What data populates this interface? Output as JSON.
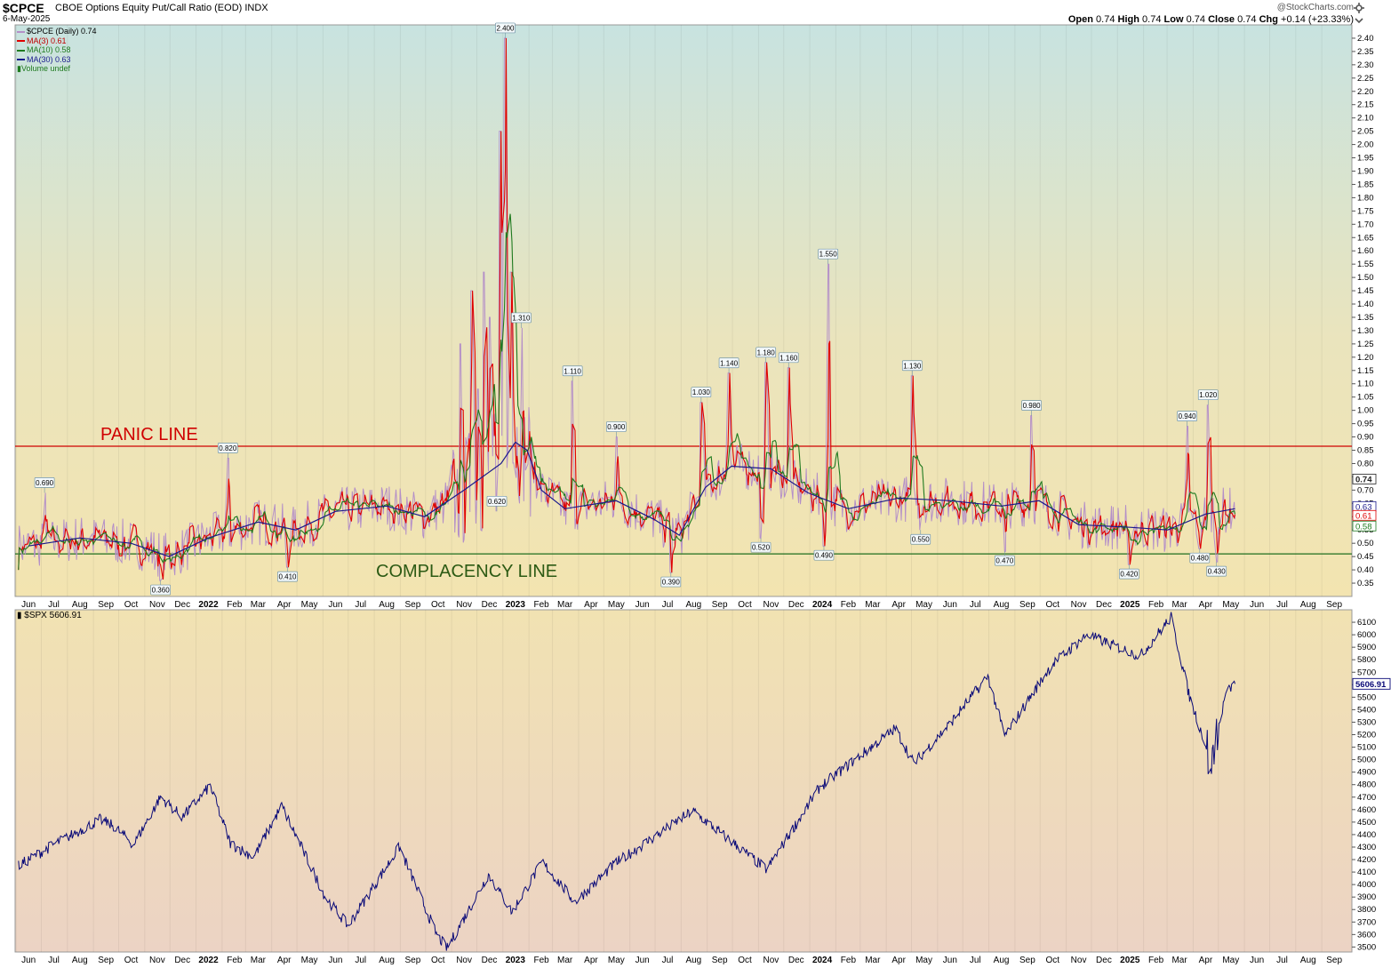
{
  "header": {
    "symbol": "$CPCE",
    "description": "CBOE Options Equity Put/Call Ratio (EOD)  INDX",
    "date": "6-May-2025",
    "brand": "@StockCharts.com",
    "ohlc": {
      "open_label": "Open",
      "open": "0.74",
      "high_label": "High",
      "high": "0.74",
      "low_label": "Low",
      "low": "0.74",
      "close_label": "Close",
      "close": "0.74",
      "chg_label": "Chg",
      "chg": "+0.14 (+23.33%)"
    }
  },
  "legend": {
    "cpce": "$CPCE (Daily) 0.74",
    "ma3": "MA(3) 0.61",
    "ma10": "MA(10) 0.58",
    "ma30": "MA(30) 0.63",
    "volume": "Volume undef",
    "spx": "$SPX 5606.91"
  },
  "colors": {
    "cpce": "#b48fc8",
    "ma3": "#e00000",
    "ma10": "#1f7a1f",
    "ma30": "#1a1a8c",
    "spx": "#0a0a78",
    "panic": "#d00000",
    "complacency": "#1e6e1e"
  },
  "x_axis_labels": [
    "Jun",
    "Jul",
    "Aug",
    "Sep",
    "Oct",
    "Nov",
    "Dec",
    "2022",
    "Feb",
    "Mar",
    "Apr",
    "May",
    "Jun",
    "Jul",
    "Aug",
    "Sep",
    "Oct",
    "Nov",
    "Dec",
    "2023",
    "Feb",
    "Mar",
    "Apr",
    "May",
    "Jun",
    "Jul",
    "Aug",
    "Sep",
    "Oct",
    "Nov",
    "Dec",
    "2024",
    "Feb",
    "Mar",
    "Apr",
    "May",
    "Jun",
    "Jul",
    "Aug",
    "Sep",
    "Oct",
    "Nov",
    "Dec",
    "2025",
    "Feb",
    "Mar",
    "Apr",
    "May",
    "Jun",
    "Jul",
    "Aug",
    "Sep"
  ],
  "chart_data": [
    {
      "type": "line",
      "title": "$CPCE CBOE Options Equity Put/Call Ratio (EOD)",
      "x_range": [
        "2021-05",
        "2025-09"
      ],
      "ylim": [
        0.3,
        2.45
      ],
      "y_ticks": [
        "2.40",
        "2.35",
        "2.30",
        "2.25",
        "2.20",
        "2.15",
        "2.10",
        "2.05",
        "2.00",
        "1.95",
        "1.90",
        "1.85",
        "1.80",
        "1.75",
        "1.70",
        "1.65",
        "1.60",
        "1.55",
        "1.50",
        "1.45",
        "1.40",
        "1.35",
        "1.30",
        "1.25",
        "1.20",
        "1.15",
        "1.10",
        "1.05",
        "1.00",
        "0.95",
        "0.90",
        "0.85",
        "0.80",
        "0.75",
        "0.70",
        "0.65",
        "0.60",
        "0.55",
        "0.50",
        "0.45",
        "0.40",
        "0.35"
      ],
      "last_value_labels": {
        "close": "0.74",
        "ma30": "0.63",
        "ma3": "0.61",
        "ma10": "0.58"
      },
      "reference_lines": [
        {
          "name": "PANIC LINE",
          "value": 0.865
        },
        {
          "name": "COMPLACENCY LINE",
          "value": 0.46
        }
      ],
      "annotations": [
        {
          "date": "2021-06-20",
          "value": 0.69,
          "label": "0.690"
        },
        {
          "date": "2021-11-05",
          "value": 0.36,
          "label": "0.360"
        },
        {
          "date": "2022-01-24",
          "value": 0.82,
          "label": "0.820"
        },
        {
          "date": "2022-04-05",
          "value": 0.41,
          "label": "0.410"
        },
        {
          "date": "2022-12-20",
          "value": 2.4,
          "label": "2.400"
        },
        {
          "date": "2022-12-10",
          "value": 0.62,
          "label": "0.620"
        },
        {
          "date": "2023-01-08",
          "value": 1.31,
          "label": "1.310"
        },
        {
          "date": "2023-03-10",
          "value": 1.11,
          "label": "1.110"
        },
        {
          "date": "2023-05-01",
          "value": 0.9,
          "label": "0.900"
        },
        {
          "date": "2023-07-05",
          "value": 0.39,
          "label": "0.390"
        },
        {
          "date": "2023-08-10",
          "value": 1.03,
          "label": "1.030"
        },
        {
          "date": "2023-09-12",
          "value": 1.14,
          "label": "1.140"
        },
        {
          "date": "2023-10-20",
          "value": 0.52,
          "label": "0.520"
        },
        {
          "date": "2023-10-26",
          "value": 1.18,
          "label": "1.180"
        },
        {
          "date": "2023-11-22",
          "value": 1.16,
          "label": "1.160"
        },
        {
          "date": "2024-01-03",
          "value": 0.49,
          "label": "0.490"
        },
        {
          "date": "2024-01-08",
          "value": 1.55,
          "label": "1.550"
        },
        {
          "date": "2024-04-17",
          "value": 1.13,
          "label": "1.130"
        },
        {
          "date": "2024-04-27",
          "value": 0.55,
          "label": "0.550"
        },
        {
          "date": "2024-08-05",
          "value": 0.47,
          "label": "0.470"
        },
        {
          "date": "2024-09-06",
          "value": 0.98,
          "label": "0.980"
        },
        {
          "date": "2024-12-31",
          "value": 0.42,
          "label": "0.420"
        },
        {
          "date": "2025-03-10",
          "value": 0.94,
          "label": "0.940"
        },
        {
          "date": "2025-03-25",
          "value": 0.48,
          "label": "0.480"
        },
        {
          "date": "2025-04-04",
          "value": 1.02,
          "label": "1.020"
        },
        {
          "date": "2025-04-14",
          "value": 0.43,
          "label": "0.430"
        }
      ],
      "series": [
        {
          "name": "$CPCE (Daily)",
          "last": 0.74
        },
        {
          "name": "MA(3)",
          "last": 0.61
        },
        {
          "name": "MA(10)",
          "last": 0.58
        },
        {
          "name": "MA(30)",
          "last": 0.63
        }
      ],
      "ma30_approx": {
        "dates": [
          "2021-06-01",
          "2021-08-01",
          "2021-10-01",
          "2021-11-15",
          "2022-01-01",
          "2022-03-01",
          "2022-04-15",
          "2022-06-01",
          "2022-08-01",
          "2022-09-15",
          "2022-11-01",
          "2022-12-15",
          "2023-01-01",
          "2023-01-15",
          "2023-02-01",
          "2023-03-01",
          "2023-05-01",
          "2023-06-15",
          "2023-07-15",
          "2023-08-15",
          "2023-09-15",
          "2023-11-01",
          "2023-12-15",
          "2024-02-01",
          "2024-04-01",
          "2024-06-01",
          "2024-08-01",
          "2024-09-15",
          "2024-11-01",
          "2025-01-01",
          "2025-02-15",
          "2025-04-01",
          "2025-05-06"
        ],
        "values": [
          0.49,
          0.52,
          0.5,
          0.45,
          0.52,
          0.58,
          0.55,
          0.62,
          0.64,
          0.6,
          0.7,
          0.8,
          0.88,
          0.85,
          0.7,
          0.63,
          0.66,
          0.59,
          0.53,
          0.71,
          0.79,
          0.78,
          0.69,
          0.63,
          0.67,
          0.66,
          0.64,
          0.66,
          0.57,
          0.56,
          0.55,
          0.61,
          0.63
        ]
      }
    },
    {
      "type": "line",
      "title": "$SPX 5606.91",
      "x_range": [
        "2021-05",
        "2025-09"
      ],
      "ylim": [
        3460,
        6200
      ],
      "y_ticks": [
        "6100",
        "6000",
        "5900",
        "5800",
        "5700",
        "5600",
        "5500",
        "5400",
        "5300",
        "5200",
        "5100",
        "5000",
        "4900",
        "4800",
        "4700",
        "4600",
        "4500",
        "4400",
        "4300",
        "4200",
        "4100",
        "4000",
        "3900",
        "3800",
        "3700",
        "3600",
        "3500"
      ],
      "last_value_label": "5606.91",
      "series": [
        {
          "name": "$SPX",
          "dates": [
            "2021-05-20",
            "2021-07-01",
            "2021-08-25",
            "2021-09-10",
            "2021-10-04",
            "2021-11-05",
            "2021-12-01",
            "2022-01-03",
            "2022-01-27",
            "2022-02-24",
            "2022-03-29",
            "2022-05-20",
            "2022-06-16",
            "2022-08-16",
            "2022-09-30",
            "2022-10-12",
            "2022-11-30",
            "2022-12-28",
            "2023-02-02",
            "2023-03-13",
            "2023-04-30",
            "2023-07-31",
            "2023-10-27",
            "2023-12-29",
            "2024-03-28",
            "2024-04-19",
            "2024-05-31",
            "2024-07-16",
            "2024-08-05",
            "2024-09-30",
            "2024-11-11",
            "2025-01-13",
            "2025-02-19",
            "2025-03-13",
            "2025-04-08",
            "2025-04-25",
            "2025-05-06"
          ],
          "values": [
            4150,
            4320,
            4520,
            4470,
            4320,
            4700,
            4540,
            4790,
            4330,
            4220,
            4630,
            3900,
            3670,
            4300,
            3590,
            3490,
            4080,
            3780,
            4180,
            3860,
            4170,
            4590,
            4120,
            4780,
            5250,
            4970,
            5280,
            5670,
            5190,
            5760,
            6000,
            5830,
            6140,
            5500,
            4980,
            5530,
            5606.91
          ]
        }
      ]
    }
  ]
}
